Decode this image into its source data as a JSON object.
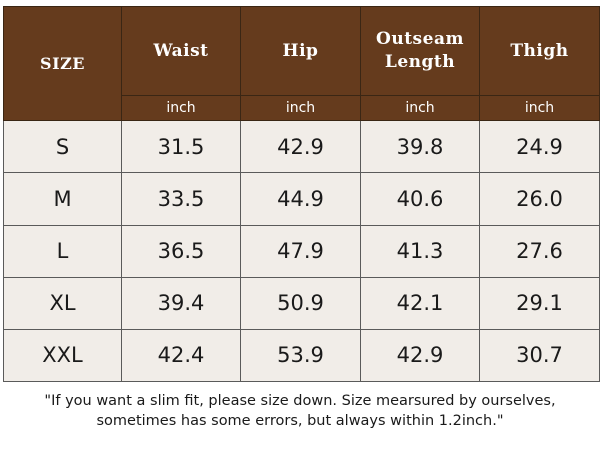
{
  "table": {
    "headers": [
      "SIZE",
      "Waist",
      "Hip",
      "Outseam Length",
      "Thigh"
    ],
    "units": [
      "inch",
      "inch",
      "inch",
      "inch"
    ],
    "rows": [
      [
        "S",
        "31.5",
        "42.9",
        "39.8",
        "24.9"
      ],
      [
        "M",
        "33.5",
        "44.9",
        "40.6",
        "26.0"
      ],
      [
        "L",
        "36.5",
        "47.9",
        "41.3",
        "27.6"
      ],
      [
        "XL",
        "39.4",
        "50.9",
        "42.1",
        "29.1"
      ],
      [
        "XXL",
        "42.4",
        "53.9",
        "42.9",
        "30.7"
      ]
    ]
  },
  "note": {
    "line1": "\"If you want a slim fit, please size down. Size mearsured by ourselves,",
    "line2": "sometimes has some errors, but always within 1.2inch.\""
  },
  "colors": {
    "header_bg": "#653b1d",
    "header_text": "#ffffff",
    "row_bg": "#f1ede8"
  }
}
